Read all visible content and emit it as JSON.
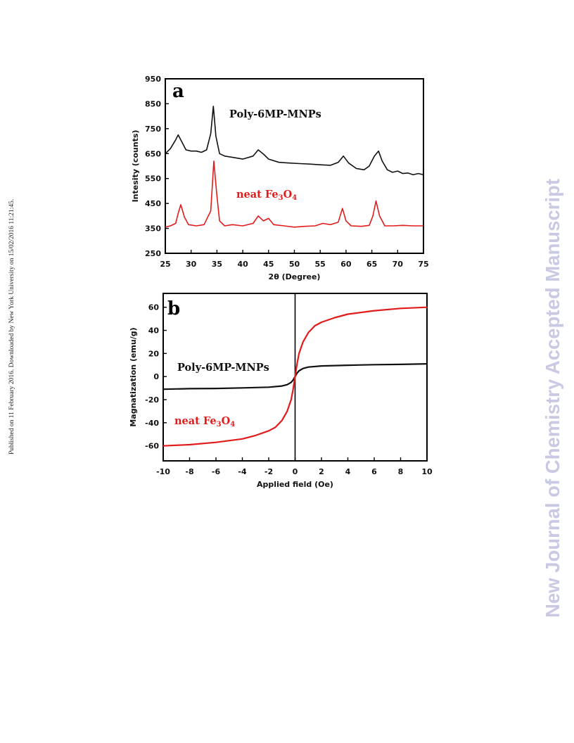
{
  "side_notes": {
    "left": "Published on 11 February 2016. Downloaded by New York University on 15/02/2016 11:21:45.",
    "right": "New Journal of Chemistry Accepted Manuscript"
  },
  "colors": {
    "black_series": "#111111",
    "red_series": "#e21b1b"
  },
  "chart_data": [
    {
      "type": "line",
      "panel_label": "a",
      "xlabel": "2θ (Degree)",
      "ylabel": "Intesity (counts)",
      "xlim": [
        25,
        75
      ],
      "ylim": [
        250,
        950
      ],
      "xticks": [
        "25",
        "30",
        "35",
        "40",
        "45",
        "50",
        "55",
        "60",
        "65",
        "70",
        "75"
      ],
      "yticks": [
        "250",
        "350",
        "450",
        "550",
        "650",
        "750",
        "850",
        "950"
      ],
      "grid": false,
      "series": [
        {
          "name": "Poly-6MP-MNPs",
          "color": "#111111",
          "label_main": "Poly-6MP-MNPs",
          "label_sub": "",
          "x": [
            25,
            26,
            27,
            27.5,
            28,
            29,
            30,
            31,
            32,
            33,
            33.8,
            34.3,
            34.8,
            35.5,
            36.5,
            38,
            40,
            42,
            43,
            44,
            45,
            47,
            49,
            51,
            53,
            55,
            57,
            58.5,
            59.5,
            60.5,
            62,
            63.5,
            64.5,
            65.5,
            66.3,
            67,
            68,
            69,
            70,
            71,
            72,
            73,
            74,
            75
          ],
          "y": [
            650,
            670,
            705,
            725,
            705,
            665,
            660,
            660,
            655,
            665,
            730,
            840,
            720,
            650,
            640,
            635,
            628,
            640,
            665,
            648,
            628,
            615,
            612,
            610,
            608,
            605,
            603,
            615,
            640,
            612,
            590,
            585,
            600,
            640,
            660,
            620,
            585,
            575,
            580,
            570,
            572,
            565,
            570,
            565
          ]
        },
        {
          "name": "neat Fe3O4",
          "color": "#e21b1b",
          "label_main": "neat Fe",
          "label_sub": "3",
          "label_main2": "O",
          "label_sub2": "4",
          "x": [
            25,
            26,
            27,
            27.5,
            28,
            28.7,
            29.5,
            31,
            32.5,
            33.8,
            34.4,
            34.9,
            35.5,
            36.5,
            38,
            40,
            42,
            43,
            44,
            45,
            46,
            48,
            50,
            52,
            54,
            55.5,
            57,
            58.5,
            59.3,
            60,
            61,
            63,
            64.5,
            65.2,
            65.8,
            66.5,
            67.5,
            69,
            71,
            73,
            75
          ],
          "y": [
            355,
            360,
            370,
            410,
            445,
            395,
            365,
            360,
            365,
            420,
            620,
            500,
            380,
            360,
            365,
            360,
            370,
            400,
            380,
            390,
            365,
            360,
            355,
            358,
            360,
            370,
            365,
            375,
            430,
            380,
            360,
            358,
            362,
            400,
            460,
            400,
            360,
            360,
            362,
            360,
            360
          ]
        }
      ]
    },
    {
      "type": "line",
      "panel_label": "b",
      "xlabel": "Applied field (Oe)",
      "ylabel": "Magnatization (emu/g)",
      "xlim": [
        -10,
        10
      ],
      "ylim": [
        -73,
        72
      ],
      "xticks": [
        "-10",
        "-8",
        "-6",
        "-4",
        "-2",
        "0",
        "2",
        "4",
        "6",
        "8",
        "10"
      ],
      "yticks": [
        "60",
        "40",
        "20",
        "0",
        "-20",
        "-40",
        "-60"
      ],
      "grid": false,
      "series": [
        {
          "name": "Poly-6MP-MNPs",
          "color": "#111111",
          "label_main": "Poly-6MP-MNPs",
          "label_sub": "",
          "x": [
            -10,
            -8,
            -6,
            -4,
            -2,
            -1,
            -0.6,
            -0.3,
            -0.15,
            0,
            0.15,
            0.3,
            0.6,
            1,
            2,
            4,
            6,
            8,
            10
          ],
          "y": [
            -11,
            -10.5,
            -10.3,
            -9.8,
            -9.2,
            -8.2,
            -7,
            -5,
            -3,
            0,
            3,
            5,
            7,
            8.2,
            9.2,
            9.8,
            10.3,
            10.5,
            11
          ]
        },
        {
          "name": "neat Fe3O4",
          "color": "#e21b1b",
          "label_main": "neat Fe",
          "label_sub": "3",
          "label_main2": "O",
          "label_sub2": "4",
          "x": [
            -10,
            -8,
            -6,
            -4,
            -3,
            -2,
            -1.5,
            -1,
            -0.6,
            -0.3,
            -0.15,
            0,
            0.15,
            0.3,
            0.6,
            1,
            1.5,
            2,
            3,
            4,
            6,
            8,
            10
          ],
          "y": [
            -60,
            -59,
            -57,
            -54,
            -51,
            -47,
            -44,
            -38,
            -30,
            -20,
            -11,
            0,
            11,
            20,
            30,
            38,
            44,
            47,
            51,
            54,
            57,
            59,
            60
          ]
        }
      ]
    }
  ]
}
